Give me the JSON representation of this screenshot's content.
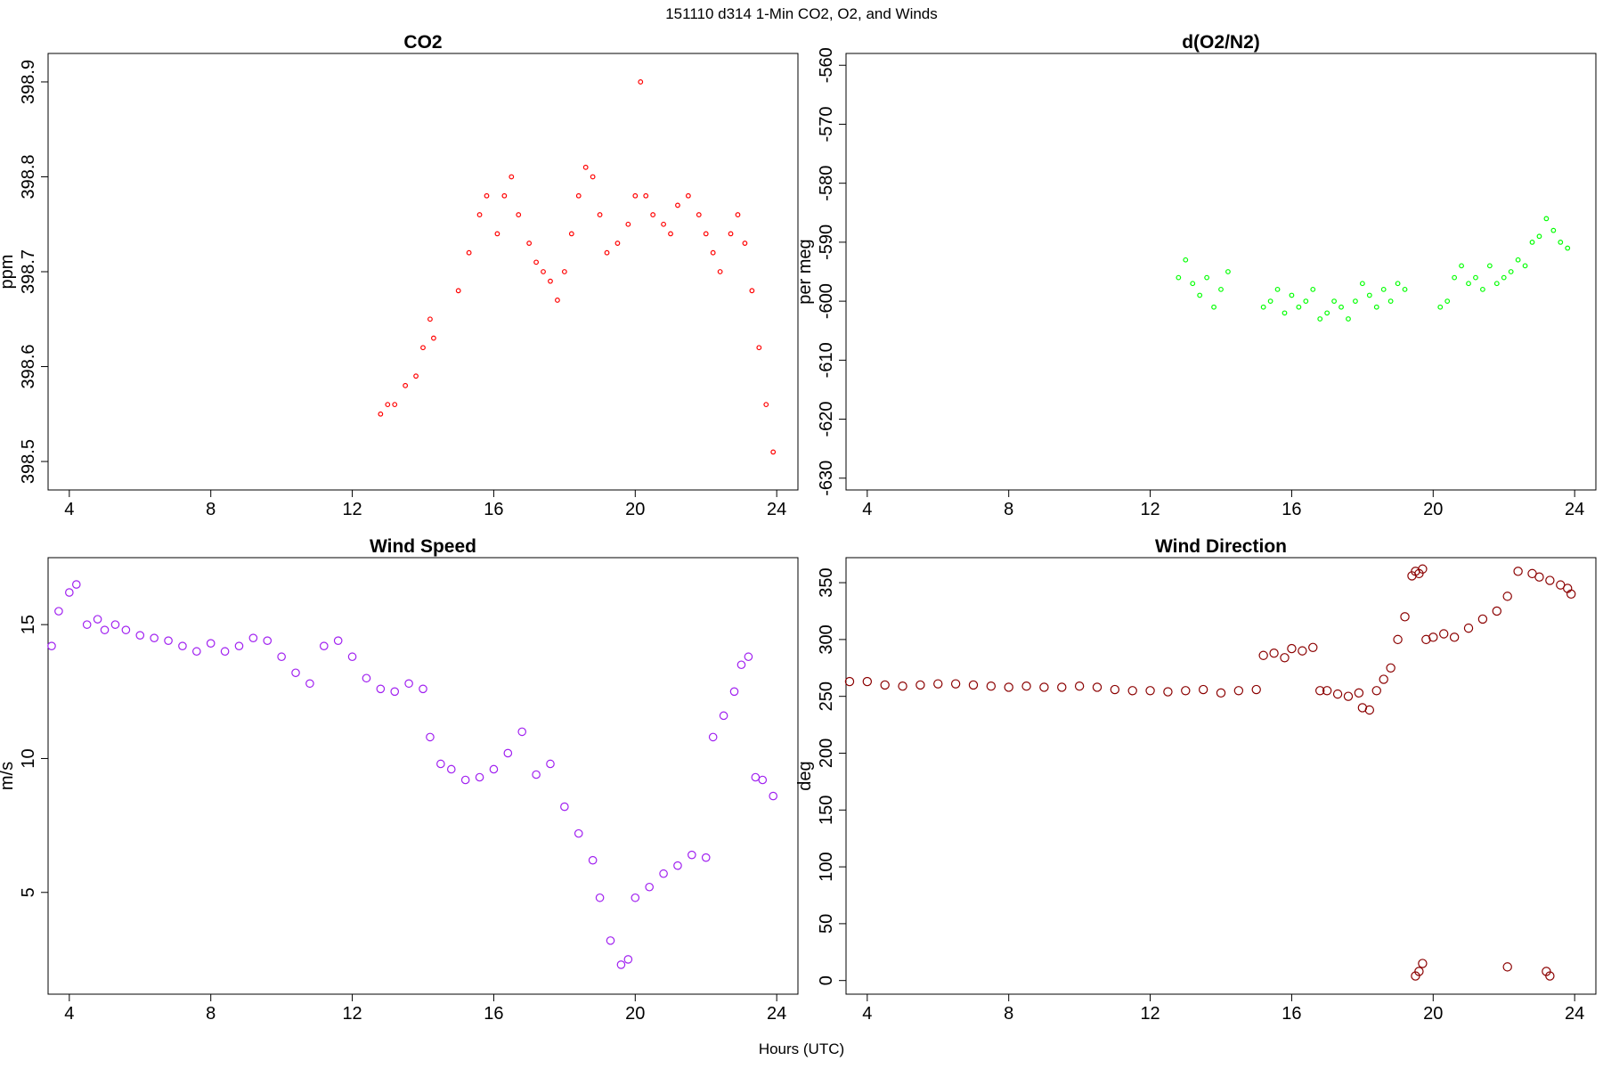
{
  "figure": {
    "title": "151110   d314   1-Min CO2, O2, and Winds",
    "x_label": "Hours (UTC)"
  },
  "chart_data": [
    {
      "id": "co2",
      "type": "scatter",
      "title": "CO2",
      "xlabel": "",
      "ylabel": "ppm",
      "color": "#ff0000",
      "xlim": [
        3.4,
        24.6
      ],
      "ylim": [
        398.47,
        398.93
      ],
      "xticks": [
        4,
        8,
        12,
        16,
        20,
        24
      ],
      "yticks": [
        398.5,
        398.6,
        398.7,
        398.8,
        398.9
      ],
      "ytick_labels": [
        "398.5",
        "398.6",
        "398.7",
        "398.8",
        "398.9"
      ],
      "series": [
        {
          "x": [
            12.8,
            13.0,
            13.2,
            13.5,
            13.8,
            14.0,
            14.2,
            14.3,
            15.0,
            15.3,
            15.6,
            15.8,
            16.1,
            16.3,
            16.5,
            16.7,
            17.0,
            17.2,
            17.4,
            17.6,
            17.8,
            18.0,
            18.2,
            18.4,
            18.6,
            18.8,
            19.0,
            19.2,
            19.5,
            19.8,
            20.0,
            20.15,
            20.3,
            20.5,
            20.8,
            21.0,
            21.2,
            21.5,
            21.8,
            22.0,
            22.2,
            22.4,
            22.7,
            22.9,
            23.1,
            23.3,
            23.5,
            23.7,
            23.9
          ],
          "y": [
            398.55,
            398.56,
            398.56,
            398.58,
            398.59,
            398.62,
            398.65,
            398.63,
            398.68,
            398.72,
            398.76,
            398.78,
            398.74,
            398.78,
            398.8,
            398.76,
            398.73,
            398.71,
            398.7,
            398.69,
            398.67,
            398.7,
            398.74,
            398.78,
            398.81,
            398.8,
            398.76,
            398.72,
            398.73,
            398.75,
            398.78,
            398.9,
            398.78,
            398.76,
            398.75,
            398.74,
            398.77,
            398.78,
            398.76,
            398.74,
            398.72,
            398.7,
            398.74,
            398.76,
            398.73,
            398.68,
            398.62,
            398.56,
            398.51
          ]
        }
      ]
    },
    {
      "id": "o2",
      "type": "scatter",
      "title": "d(O2/N2)",
      "xlabel": "",
      "ylabel": "per meg",
      "color": "#00ff00",
      "xlim": [
        3.4,
        24.6
      ],
      "ylim": [
        -632,
        -558
      ],
      "xticks": [
        4,
        8,
        12,
        16,
        20,
        24
      ],
      "yticks": [
        -630,
        -620,
        -610,
        -600,
        -590,
        -580,
        -570,
        -560
      ],
      "ytick_labels": [
        "-630",
        "-620",
        "-610",
        "-600",
        "-590",
        "-580",
        "-570",
        "-560"
      ],
      "series": [
        {
          "x": [
            12.8,
            13.0,
            13.2,
            13.4,
            13.6,
            13.8,
            14.0,
            14.2,
            15.2,
            15.4,
            15.6,
            15.8,
            16.0,
            16.2,
            16.4,
            16.6,
            16.8,
            17.0,
            17.2,
            17.4,
            17.6,
            17.8,
            18.0,
            18.2,
            18.4,
            18.6,
            18.8,
            19.0,
            19.2,
            20.2,
            20.4,
            20.6,
            20.8,
            21.0,
            21.2,
            21.4,
            21.6,
            21.8,
            22.0,
            22.2,
            22.4,
            22.6,
            22.8,
            23.0,
            23.2,
            23.4,
            23.6,
            23.8
          ],
          "y": [
            -596,
            -593,
            -597,
            -599,
            -596,
            -601,
            -598,
            -595,
            -601,
            -600,
            -598,
            -602,
            -599,
            -601,
            -600,
            -598,
            -603,
            -602,
            -600,
            -601,
            -603,
            -600,
            -597,
            -599,
            -601,
            -598,
            -600,
            -597,
            -598,
            -601,
            -600,
            -596,
            -594,
            -597,
            -596,
            -598,
            -594,
            -597,
            -596,
            -595,
            -593,
            -594,
            -590,
            -589,
            -586,
            -588,
            -590,
            -591
          ]
        }
      ]
    },
    {
      "id": "ws",
      "type": "scatter",
      "title": "Wind Speed",
      "xlabel": "",
      "ylabel": "m/s",
      "color": "#a020f0",
      "xlim": [
        3.4,
        24.6
      ],
      "ylim": [
        1.2,
        17.5
      ],
      "xticks": [
        4,
        8,
        12,
        16,
        20,
        24
      ],
      "yticks": [
        5,
        10,
        15
      ],
      "ytick_labels": [
        "5",
        "10",
        "15"
      ],
      "series": [
        {
          "x": [
            3.5,
            3.7,
            4.0,
            4.2,
            4.5,
            4.8,
            5.0,
            5.3,
            5.6,
            6.0,
            6.4,
            6.8,
            7.2,
            7.6,
            8.0,
            8.4,
            8.8,
            9.2,
            9.6,
            10.0,
            10.4,
            10.8,
            11.2,
            11.6,
            12.0,
            12.4,
            12.8,
            13.2,
            13.6,
            14.0,
            14.2,
            14.5,
            14.8,
            15.2,
            15.6,
            16.0,
            16.4,
            16.8,
            17.2,
            17.6,
            18.0,
            18.4,
            18.8,
            19.0,
            19.3,
            19.6,
            19.8,
            20.0,
            20.4,
            20.8,
            21.2,
            21.6,
            22.0,
            22.2,
            22.5,
            22.8,
            23.0,
            23.2,
            23.4,
            23.6,
            23.9
          ],
          "y": [
            14.2,
            15.5,
            16.2,
            16.5,
            15.0,
            15.2,
            14.8,
            15.0,
            14.8,
            14.6,
            14.5,
            14.4,
            14.2,
            14.0,
            14.3,
            14.0,
            14.2,
            14.5,
            14.4,
            13.8,
            13.2,
            12.8,
            14.2,
            14.4,
            13.8,
            13.0,
            12.6,
            12.5,
            12.8,
            12.6,
            10.8,
            9.8,
            9.6,
            9.2,
            9.3,
            9.6,
            10.2,
            11.0,
            9.4,
            9.8,
            8.2,
            7.2,
            6.2,
            4.8,
            3.2,
            2.3,
            2.5,
            4.8,
            5.2,
            5.7,
            6.0,
            6.4,
            6.3,
            10.8,
            11.6,
            12.5,
            13.5,
            13.8,
            9.3,
            9.2,
            8.6
          ]
        }
      ]
    },
    {
      "id": "wd",
      "type": "scatter",
      "title": "Wind Direction",
      "xlabel": "",
      "ylabel": "deg",
      "color": "#8b0000",
      "xlim": [
        3.4,
        24.6
      ],
      "ylim": [
        -12,
        372
      ],
      "xticks": [
        4,
        8,
        12,
        16,
        20,
        24
      ],
      "yticks": [
        0,
        50,
        100,
        150,
        200,
        250,
        300,
        350
      ],
      "ytick_labels": [
        "0",
        "50",
        "100",
        "150",
        "200",
        "250",
        "300",
        "350"
      ],
      "series": [
        {
          "x": [
            3.5,
            4.0,
            4.5,
            5.0,
            5.5,
            6.0,
            6.5,
            7.0,
            7.5,
            8.0,
            8.5,
            9.0,
            9.5,
            10.0,
            10.5,
            11.0,
            11.5,
            12.0,
            12.5,
            13.0,
            13.5,
            14.0,
            14.5,
            15.0,
            15.2,
            15.5,
            15.8,
            16.0,
            16.3,
            16.6,
            16.8,
            17.0,
            17.3,
            17.6,
            17.9,
            18.0,
            18.2,
            18.4,
            18.6,
            18.8,
            19.0,
            19.2,
            19.4,
            19.5,
            19.6,
            19.7,
            19.8,
            20.0,
            20.3,
            20.6,
            21.0,
            21.4,
            21.8,
            22.1,
            22.4,
            22.8,
            23.0,
            23.3,
            23.6,
            23.8,
            23.9,
            19.5,
            19.6,
            19.7,
            22.1,
            23.2,
            23.3
          ],
          "y": [
            263,
            263,
            260,
            259,
            260,
            261,
            261,
            260,
            259,
            258,
            259,
            258,
            258,
            259,
            258,
            256,
            255,
            255,
            254,
            255,
            256,
            253,
            255,
            256,
            286,
            288,
            284,
            292,
            290,
            293,
            255,
            255,
            252,
            250,
            253,
            240,
            238,
            255,
            265,
            275,
            300,
            320,
            356,
            360,
            358,
            362,
            300,
            302,
            305,
            302,
            310,
            318,
            325,
            338,
            360,
            358,
            355,
            352,
            348,
            345,
            340,
            4,
            8,
            15,
            12,
            8,
            4
          ]
        }
      ]
    }
  ]
}
